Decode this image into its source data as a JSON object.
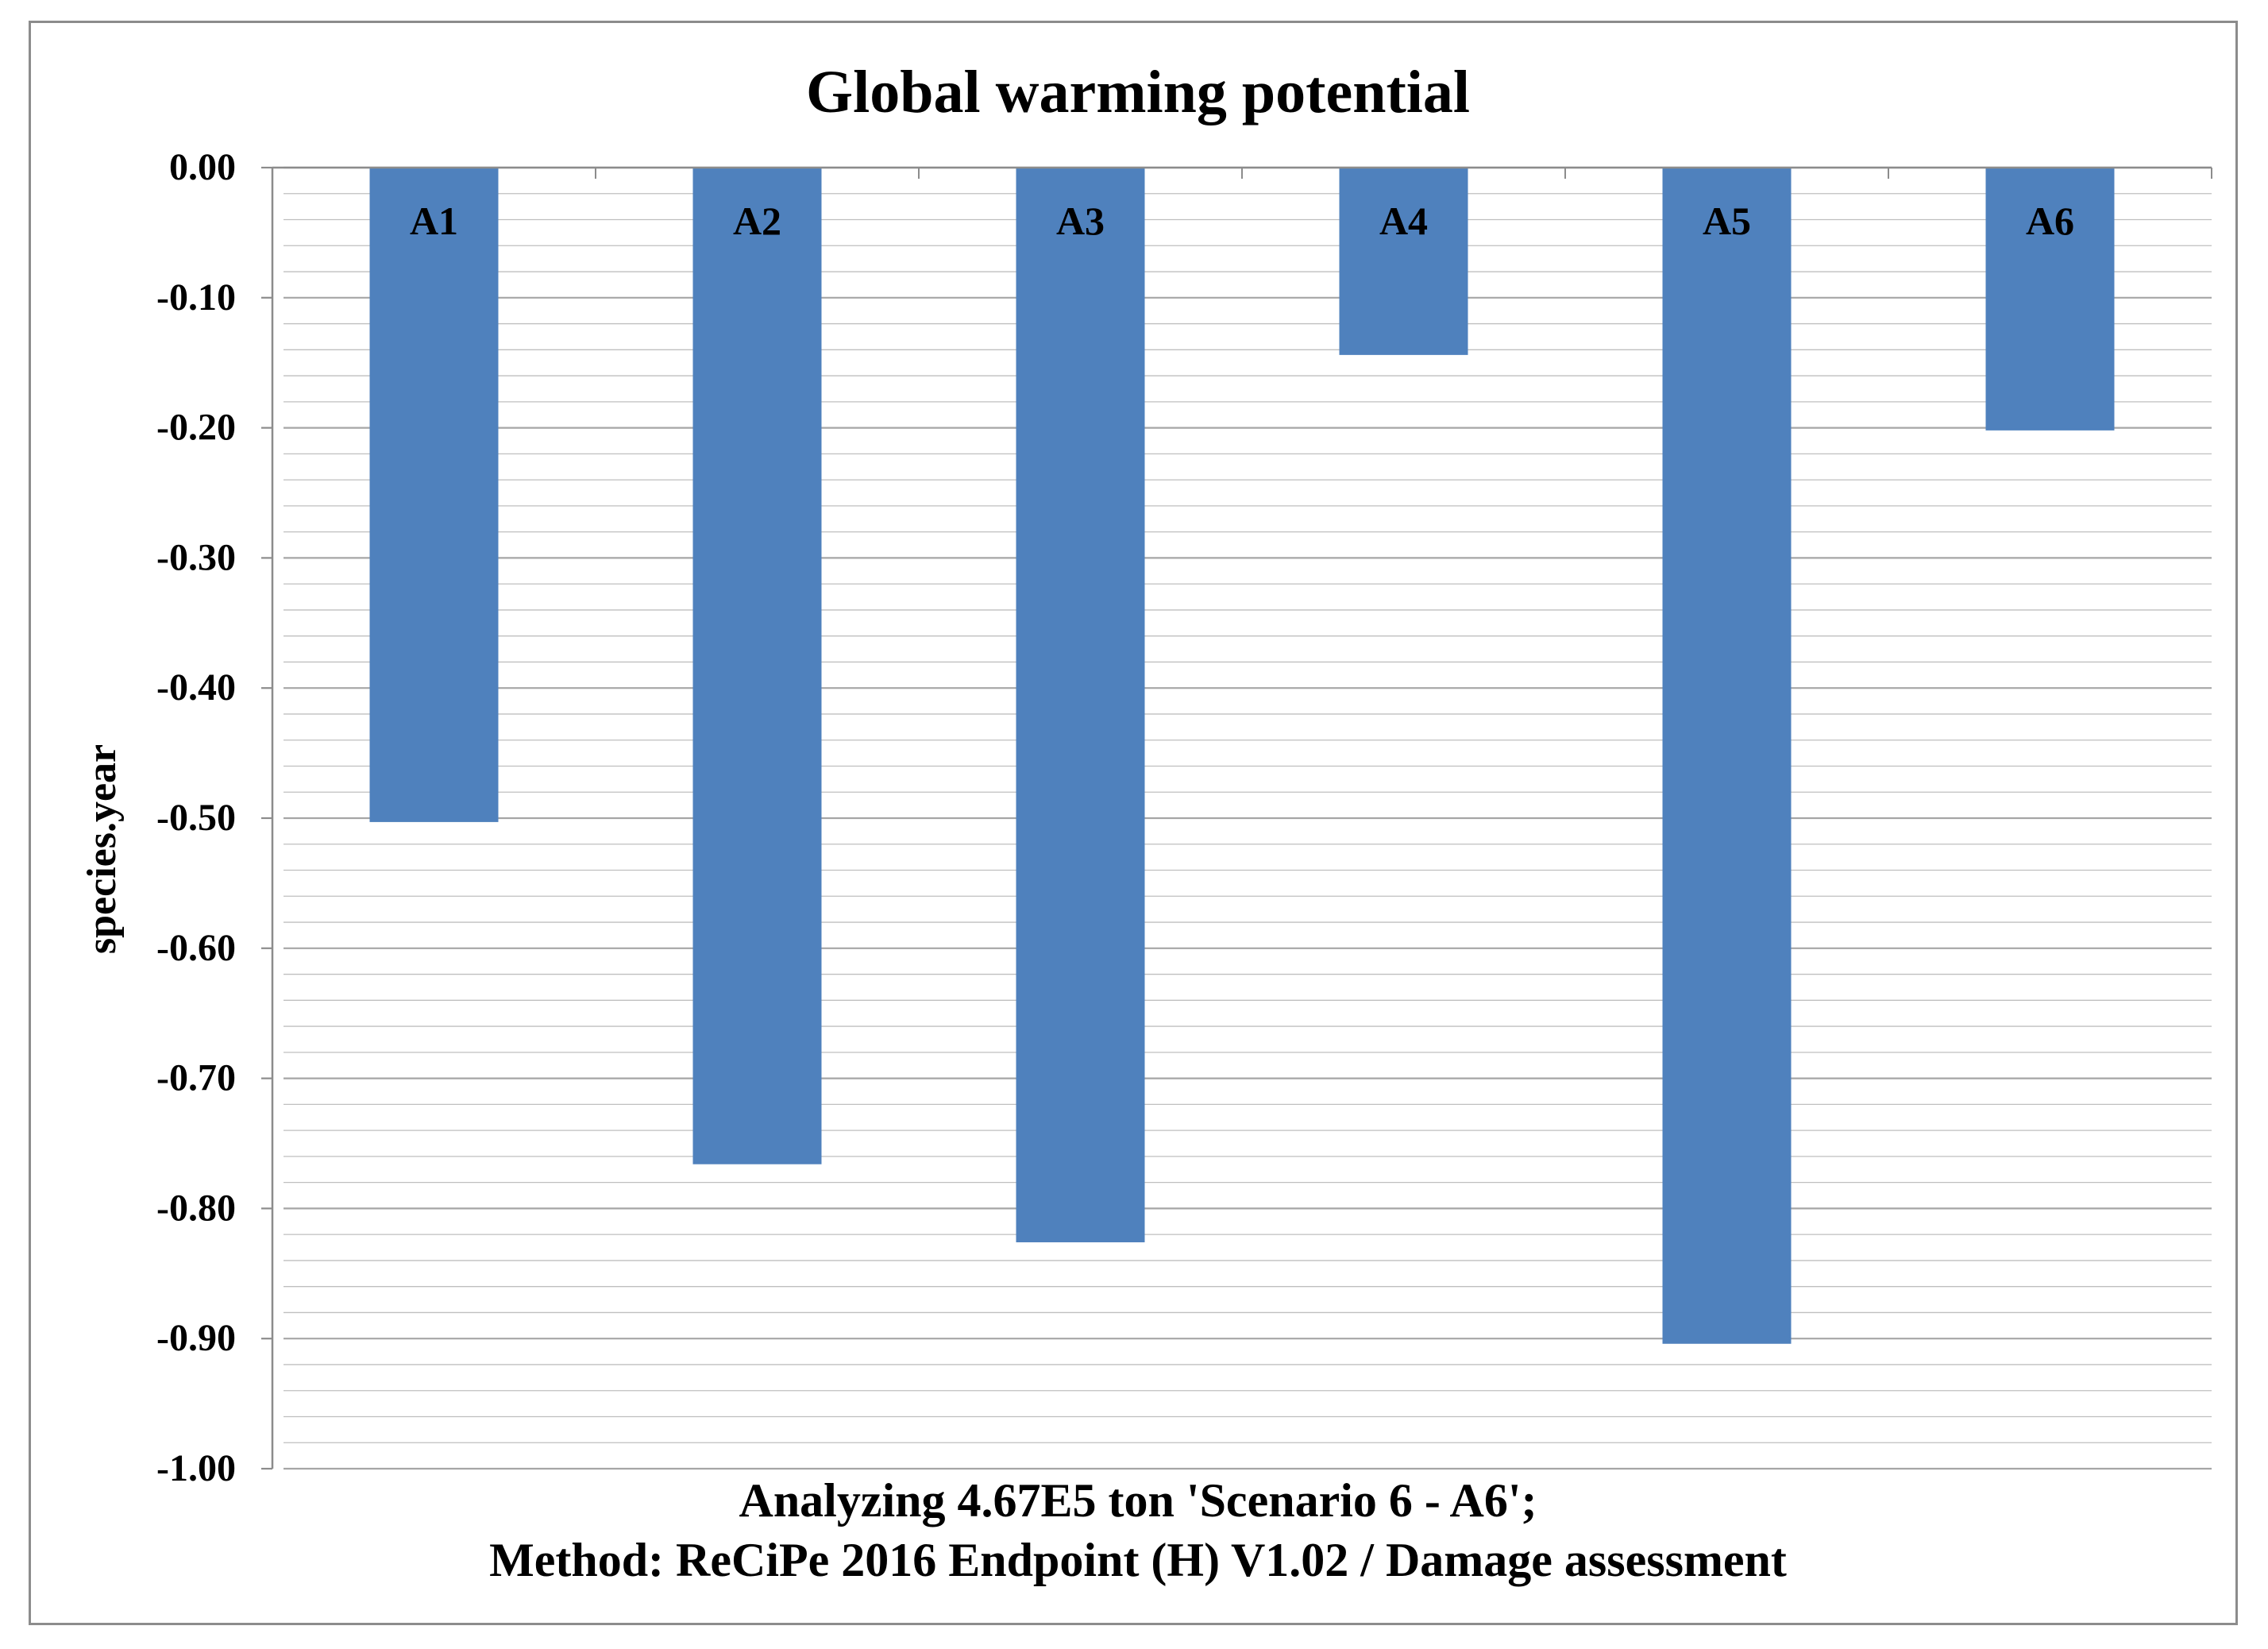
{
  "chart_data": {
    "type": "bar",
    "title": "Global warming potential",
    "ylabel": "species.year",
    "xlabel_lines": [
      "Analyzing  4.67E5 ton 'Scenario 6 - A6';",
      "Method: ReCiPe 2016 Endpoint (H) V1.02 / Damage assessment"
    ],
    "categories": [
      "A1",
      "A2",
      "A3",
      "A4",
      "A5",
      "A6"
    ],
    "values": [
      -0.503,
      -0.766,
      -0.826,
      -0.144,
      -0.904,
      -0.202
    ],
    "ylim": [
      -1.0,
      0.0
    ],
    "yticks": [
      "0.00",
      "-0.10",
      "-0.20",
      "-0.30",
      "-0.40",
      "-0.50",
      "-0.60",
      "-0.70",
      "-0.80",
      "-0.90",
      "-1.00"
    ],
    "minor_gridlines_per_major": 5,
    "grid": true,
    "legend": "none",
    "bar_color": "#4f81bd",
    "grid_color": "#bfbfbf"
  }
}
